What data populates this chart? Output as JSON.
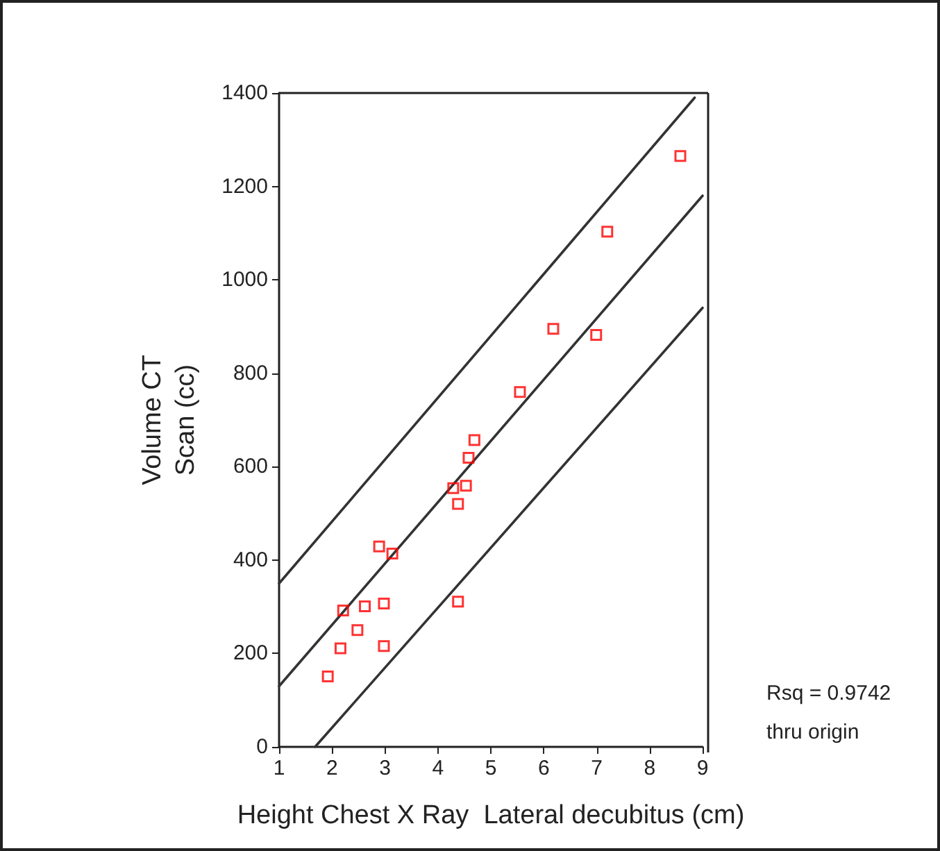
{
  "chart_data": {
    "type": "scatter",
    "xlabel": "Height Chest X Ray  Lateral decubitus (cm)",
    "ylabel": "Volume CT\nScan (cc)",
    "xlim": [
      1,
      9
    ],
    "xticks": [
      1,
      2,
      3,
      4,
      5,
      6,
      7,
      8,
      9
    ],
    "ylim": [
      0,
      1400
    ],
    "yticks": [
      0,
      200,
      400,
      600,
      800,
      1000,
      1200,
      1400
    ],
    "grid": false,
    "marker": "square",
    "series": [
      {
        "color": "#ff0000",
        "x": [
          1.92,
          2.16,
          2.21,
          2.48,
          2.62,
          2.89,
          2.98,
          2.98,
          3.14,
          4.29,
          4.38,
          4.38,
          4.53,
          4.58,
          4.69,
          5.55,
          6.18,
          6.99,
          7.2,
          8.58
        ],
        "values": [
          151,
          211,
          292,
          250,
          301,
          429,
          307,
          216,
          414,
          554,
          520,
          311,
          559,
          619,
          657,
          760,
          895,
          882,
          1103,
          1265
        ]
      },
      {
        "type": "line",
        "color": "#333333",
        "marker": "none",
        "x": [
          1,
          8.85
        ],
        "values": [
          350,
          1390
        ]
      },
      {
        "type": "line",
        "color": "#333333",
        "marker": "none",
        "x": [
          1,
          9
        ],
        "values": [
          130,
          1180
        ]
      },
      {
        "type": "line",
        "color": "#333333",
        "marker": "none",
        "x": [
          1.68,
          9
        ],
        "values": [
          0,
          940
        ]
      }
    ],
    "annotations": [
      "Rsq = 0.9742",
      "thru origin"
    ]
  }
}
